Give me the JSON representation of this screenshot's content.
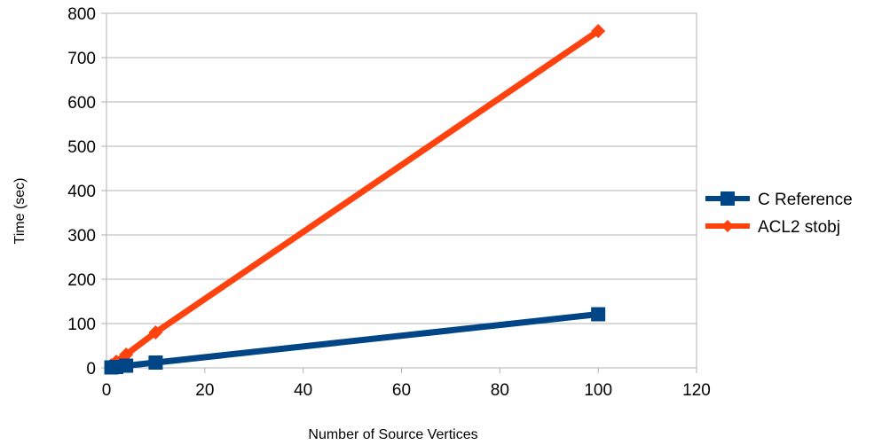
{
  "chart_data": {
    "type": "line",
    "xlabel": "Number of Source Vertices",
    "ylabel": "Time (sec)",
    "xlim": [
      0,
      120
    ],
    "ylim": [
      0,
      800
    ],
    "xticks": [
      "0",
      "20",
      "40",
      "60",
      "80",
      "100",
      "120"
    ],
    "yticks": [
      "0",
      "100",
      "200",
      "300",
      "400",
      "500",
      "600",
      "700",
      "800"
    ],
    "grid": "horizontal",
    "legend": "right",
    "series": [
      {
        "name": "C Reference",
        "color": "#004586",
        "marker": "square",
        "points": [
          [
            1,
            1
          ],
          [
            2,
            2
          ],
          [
            4,
            5
          ],
          [
            10,
            12
          ],
          [
            100,
            121
          ]
        ]
      },
      {
        "name": "ACL2 stobj",
        "color": "#ff420e",
        "marker": "diamond",
        "points": [
          [
            1,
            6
          ],
          [
            2,
            14
          ],
          [
            4,
            30
          ],
          [
            10,
            80
          ],
          [
            100,
            760
          ]
        ]
      }
    ]
  }
}
